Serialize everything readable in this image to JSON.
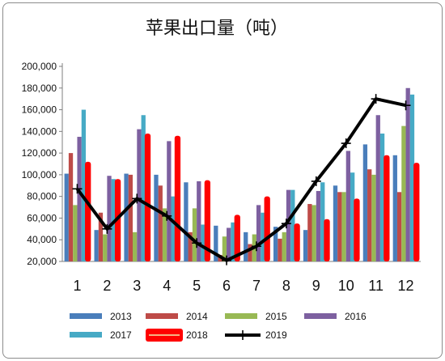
{
  "chart_data": {
    "type": "bar",
    "title": "苹果出口量（吨）",
    "categories": [
      "1",
      "2",
      "3",
      "4",
      "5",
      "6",
      "7",
      "8",
      "9",
      "10",
      "11",
      "12"
    ],
    "ylim": [
      20000,
      200000
    ],
    "yticks": [
      "20,000",
      "40,000",
      "60,000",
      "80,000",
      "100,000",
      "120,000",
      "140,000",
      "160,000",
      "180,000",
      "200,000"
    ],
    "grid": false,
    "legend": "bottom",
    "series": [
      {
        "name": "2013",
        "type": "bar",
        "color": "#4a7ebb",
        "values": [
          101000,
          49000,
          101000,
          100000,
          93000,
          53000,
          47000,
          52000,
          49000,
          90000,
          128000,
          118000
        ]
      },
      {
        "name": "2014",
        "type": "bar",
        "color": "#be4b48",
        "values": [
          120000,
          65000,
          100000,
          90000,
          47000,
          26000,
          36000,
          41000,
          73000,
          84000,
          105000,
          84000
        ]
      },
      {
        "name": "2015",
        "type": "bar",
        "color": "#98b954",
        "values": [
          72000,
          45000,
          47000,
          69000,
          69000,
          43000,
          45000,
          47000,
          72000,
          84000,
          100000,
          145000
        ]
      },
      {
        "name": "2016",
        "type": "bar",
        "color": "#7d60a0",
        "values": [
          135000,
          99000,
          142000,
          131000,
          94000,
          51000,
          72000,
          86000,
          85000,
          122000,
          155000,
          180000
        ]
      },
      {
        "name": "2017",
        "type": "bar",
        "color": "#46aac5",
        "values": [
          160000,
          96000,
          155000,
          80000,
          54000,
          56000,
          65000,
          86000,
          93000,
          102000,
          138000,
          174000
        ]
      },
      {
        "name": "2018",
        "type": "bar",
        "color": "#ff0000",
        "values": [
          112000,
          96000,
          138000,
          136000,
          95000,
          63000,
          80000,
          55000,
          59000,
          78000,
          118000,
          111000
        ]
      },
      {
        "name": "2019",
        "type": "line",
        "color": "#000000",
        "values": [
          87000,
          50000,
          78000,
          62000,
          37000,
          21000,
          34000,
          55000,
          94000,
          129000,
          170000,
          164000
        ]
      }
    ]
  }
}
